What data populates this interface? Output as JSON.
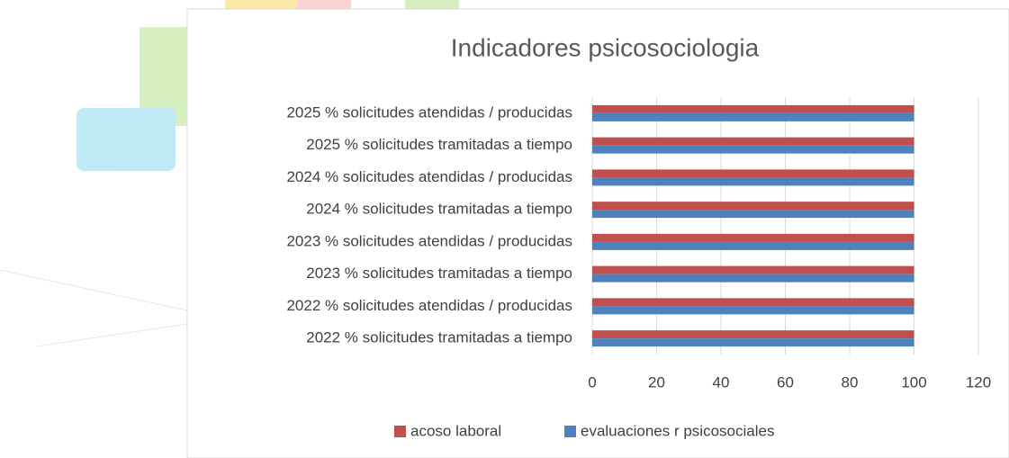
{
  "chart_data": {
    "type": "hbar",
    "title": "Indicadores psicosociologia",
    "categories": [
      "2025 % solicitudes atendidas / producidas",
      "2025 % solicitudes tramitadas a tiempo",
      "2024 % solicitudes atendidas / producidas",
      "2024 % solicitudes tramitadas a tiempo",
      "2023 % solicitudes atendidas / producidas",
      "2023 % solicitudes tramitadas a tiempo",
      "2022 % solicitudes atendidas / producidas",
      "2022 % solicitudes tramitadas a tiempo"
    ],
    "series": [
      {
        "name": "acoso laboral",
        "color": "#c0504d",
        "values": [
          100,
          100,
          100,
          100,
          100,
          100,
          100,
          100
        ]
      },
      {
        "name": "evaluaciones r psicosociales",
        "color": "#4f81bd",
        "values": [
          100,
          100,
          100,
          100,
          100,
          100,
          100,
          100
        ]
      }
    ],
    "xlim": [
      0,
      120
    ],
    "xticks": [
      0,
      20,
      40,
      60,
      80,
      100,
      120
    ],
    "grid": true,
    "legend": "bottom"
  }
}
